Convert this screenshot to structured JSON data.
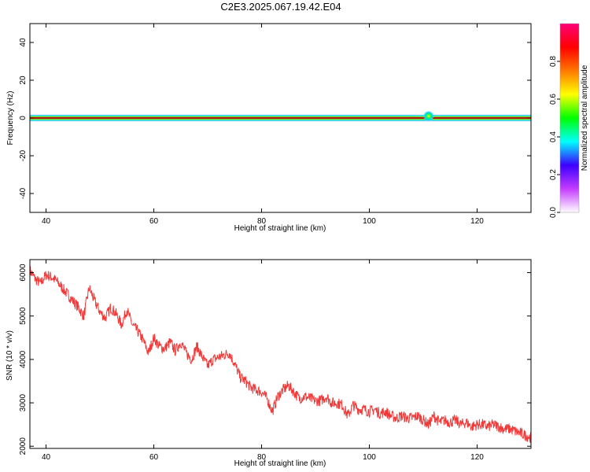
{
  "title": "C2E3.2025.067.19.42.E04",
  "chart_data": [
    {
      "type": "heatmap",
      "xlabel": "Height of straight line (km)",
      "ylabel": "Frequency (Hz)",
      "xlim": [
        37,
        130
      ],
      "ylim": [
        -50,
        50
      ],
      "xticks": [
        40,
        60,
        80,
        100,
        120
      ],
      "yticks": [
        -40,
        -20,
        0,
        20,
        40
      ],
      "grid": false,
      "features": [
        {
          "label": "main spectral line",
          "x_range": [
            37,
            130
          ],
          "frequency": 0,
          "amplitude": 1.0
        },
        {
          "label": "bright spot",
          "x": 111,
          "frequency": 1,
          "amplitude": 0.3
        }
      ],
      "colorbar": {
        "label": "Normalized spectral amplitude",
        "range": [
          0,
          1
        ],
        "ticks": [
          "0.0",
          "0.2",
          "0.4",
          "0.6",
          "0.8"
        ],
        "colors": [
          "#ffffff",
          "#c43cff",
          "#3c00ff",
          "#00ffff",
          "#00ff00",
          "#ffff00",
          "#ff7800",
          "#ff0000",
          "#ff0078"
        ]
      }
    },
    {
      "type": "line",
      "xlabel": "Height of straight line (km)",
      "ylabel": "SNR (10 * v/v)",
      "xlim": [
        37,
        130
      ],
      "ylim": [
        1950,
        6300
      ],
      "xticks": [
        40,
        60,
        80,
        100,
        120
      ],
      "yticks": [
        2000,
        3000,
        4000,
        5000,
        6000
      ],
      "grid": false,
      "series": [
        {
          "color": "#f03a3a",
          "x": [
            37,
            38,
            39,
            40,
            41,
            42,
            43,
            44,
            45,
            46,
            47,
            48,
            49,
            50,
            51,
            52,
            53,
            54,
            55,
            56,
            57,
            58,
            59,
            60,
            61,
            62,
            63,
            64,
            65,
            66,
            67,
            68,
            69,
            70,
            71,
            72,
            73,
            74,
            75,
            76,
            77,
            78,
            79,
            80,
            81,
            82,
            83,
            84,
            85,
            86,
            87,
            88,
            89,
            90,
            91,
            92,
            93,
            94,
            95,
            96,
            97,
            98,
            99,
            100,
            101,
            102,
            103,
            104,
            105,
            106,
            107,
            108,
            109,
            110,
            111,
            112,
            113,
            114,
            115,
            116,
            117,
            118,
            119,
            120,
            121,
            122,
            123,
            124,
            125,
            126,
            127,
            128,
            129,
            130
          ],
          "y": [
            6050,
            5850,
            5750,
            5950,
            5900,
            5800,
            5650,
            5500,
            5350,
            5200,
            5000,
            5650,
            5350,
            5100,
            4950,
            5200,
            5050,
            4800,
            5150,
            4800,
            4650,
            4450,
            4150,
            4500,
            4300,
            4250,
            4400,
            4200,
            4400,
            4150,
            4000,
            4300,
            4050,
            3850,
            4000,
            4050,
            4100,
            4150,
            3900,
            3600,
            3500,
            3350,
            3300,
            3250,
            3100,
            2800,
            3150,
            3300,
            3400,
            3250,
            3100,
            3150,
            3100,
            3050,
            3050,
            3150,
            3000,
            3000,
            2950,
            2700,
            2950,
            2850,
            2850,
            2800,
            2850,
            2750,
            2800,
            2700,
            2650,
            2700,
            2650,
            2650,
            2700,
            2600,
            2500,
            2700,
            2550,
            2600,
            2550,
            2600,
            2500,
            2550,
            2450,
            2500,
            2500,
            2450,
            2500,
            2450,
            2400,
            2400,
            2350,
            2300,
            2250,
            2200
          ]
        }
      ]
    }
  ]
}
